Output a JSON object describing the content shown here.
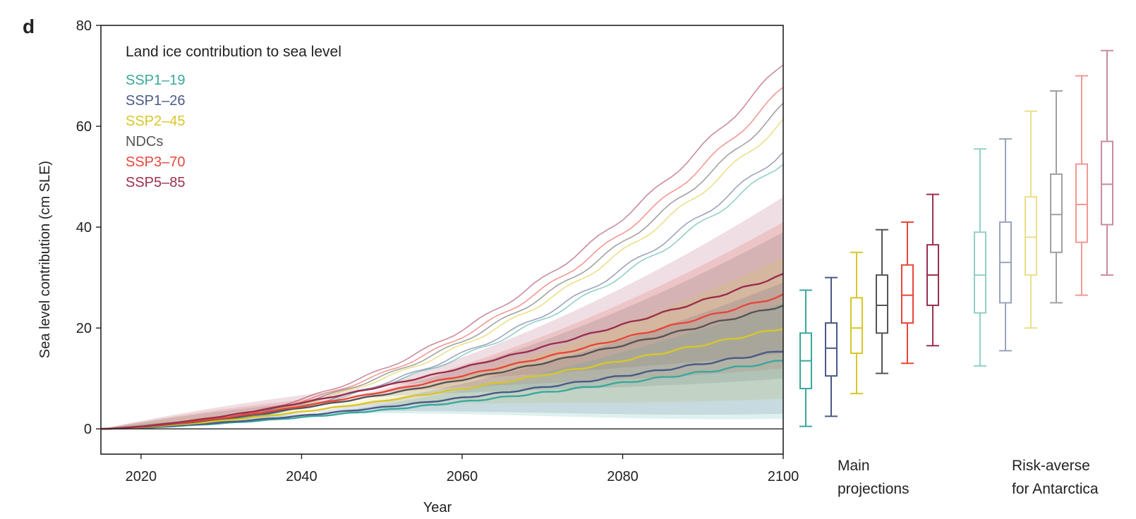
{
  "panel_label": "d",
  "chart_data": {
    "type": "line",
    "title": "Land ice contribution to sea level",
    "xlabel": "Year",
    "ylabel": "Sea level contribution (cm SLE)",
    "xlim": [
      2015,
      2100
    ],
    "ylim": [
      -5,
      80
    ],
    "xticks": [
      2020,
      2040,
      2060,
      2080,
      2100
    ],
    "yticks": [
      0,
      20,
      40,
      60,
      80
    ],
    "grid": false,
    "legend_position": "top-left",
    "series": [
      {
        "name": "SSP1–19",
        "color": "#3aa89c",
        "median_2100": 13.5,
        "band_low_2100": 2,
        "band_high_2100": 25,
        "risk_averse_median_2100": 53,
        "risk_averse_high_2100": 56
      },
      {
        "name": "SSP1–26",
        "color": "#4a5a86",
        "median_2100": 15.5,
        "band_low_2100": 3,
        "band_high_2100": 29,
        "risk_averse_median_2100": 55,
        "risk_averse_high_2100": 58
      },
      {
        "name": "SSP2–45",
        "color": "#d8c62a",
        "median_2100": 20,
        "band_low_2100": 6,
        "band_high_2100": 34,
        "risk_averse_median_2100": 61,
        "risk_averse_high_2100": 63
      },
      {
        "name": "NDCs",
        "color": "#555555",
        "median_2100": 24.5,
        "band_low_2100": 10,
        "band_high_2100": 39,
        "risk_averse_median_2100": 64,
        "risk_averse_high_2100": 66
      },
      {
        "name": "SSP3–70",
        "color": "#e8463a",
        "median_2100": 26.5,
        "band_low_2100": 12,
        "band_high_2100": 41,
        "risk_averse_median_2100": 67.5,
        "risk_averse_high_2100": 69
      },
      {
        "name": "SSP5–85",
        "color": "#9a2f4e",
        "median_2100": 30.5,
        "band_low_2100": 15,
        "band_high_2100": 46,
        "risk_averse_median_2100": 72.5,
        "risk_averse_high_2100": 74
      }
    ],
    "boxplots": [
      {
        "group_label_line1": "Main",
        "group_label_line2": "projections",
        "boxes": [
          {
            "series": "SSP1–19",
            "min": 0.5,
            "q1": 8,
            "median": 13.5,
            "q3": 19,
            "max": 27.5
          },
          {
            "series": "SSP1–26",
            "min": 2.5,
            "q1": 10.5,
            "median": 16,
            "q3": 21,
            "max": 30
          },
          {
            "series": "SSP2–45",
            "min": 7,
            "q1": 15,
            "median": 20,
            "q3": 26,
            "max": 35
          },
          {
            "series": "NDCs",
            "min": 11,
            "q1": 19,
            "median": 24.5,
            "q3": 30.5,
            "max": 39.5
          },
          {
            "series": "SSP3–70",
            "min": 13,
            "q1": 21,
            "median": 26.5,
            "q3": 32.5,
            "max": 41
          },
          {
            "series": "SSP5–85",
            "min": 16.5,
            "q1": 24.5,
            "median": 30.5,
            "q3": 36.5,
            "max": 46.5
          }
        ]
      },
      {
        "group_label_line1": "Risk-averse",
        "group_label_line2": "for Antarctica",
        "boxes": [
          {
            "series": "SSP1–19",
            "min": 12.5,
            "q1": 23,
            "median": 30.5,
            "q3": 39,
            "max": 55.5
          },
          {
            "series": "SSP1–26",
            "min": 15.5,
            "q1": 25,
            "median": 33,
            "q3": 41,
            "max": 57.5
          },
          {
            "series": "SSP2–45",
            "min": 20,
            "q1": 30.5,
            "median": 38,
            "q3": 46,
            "max": 63
          },
          {
            "series": "NDCs",
            "min": 25,
            "q1": 35,
            "median": 42.5,
            "q3": 50.5,
            "max": 67
          },
          {
            "series": "SSP3–70",
            "min": 26.5,
            "q1": 37,
            "median": 44.5,
            "q3": 52.5,
            "max": 70
          },
          {
            "series": "SSP5–85",
            "min": 30.5,
            "q1": 40.5,
            "median": 48.5,
            "q3": 57,
            "max": 75
          }
        ]
      }
    ]
  }
}
